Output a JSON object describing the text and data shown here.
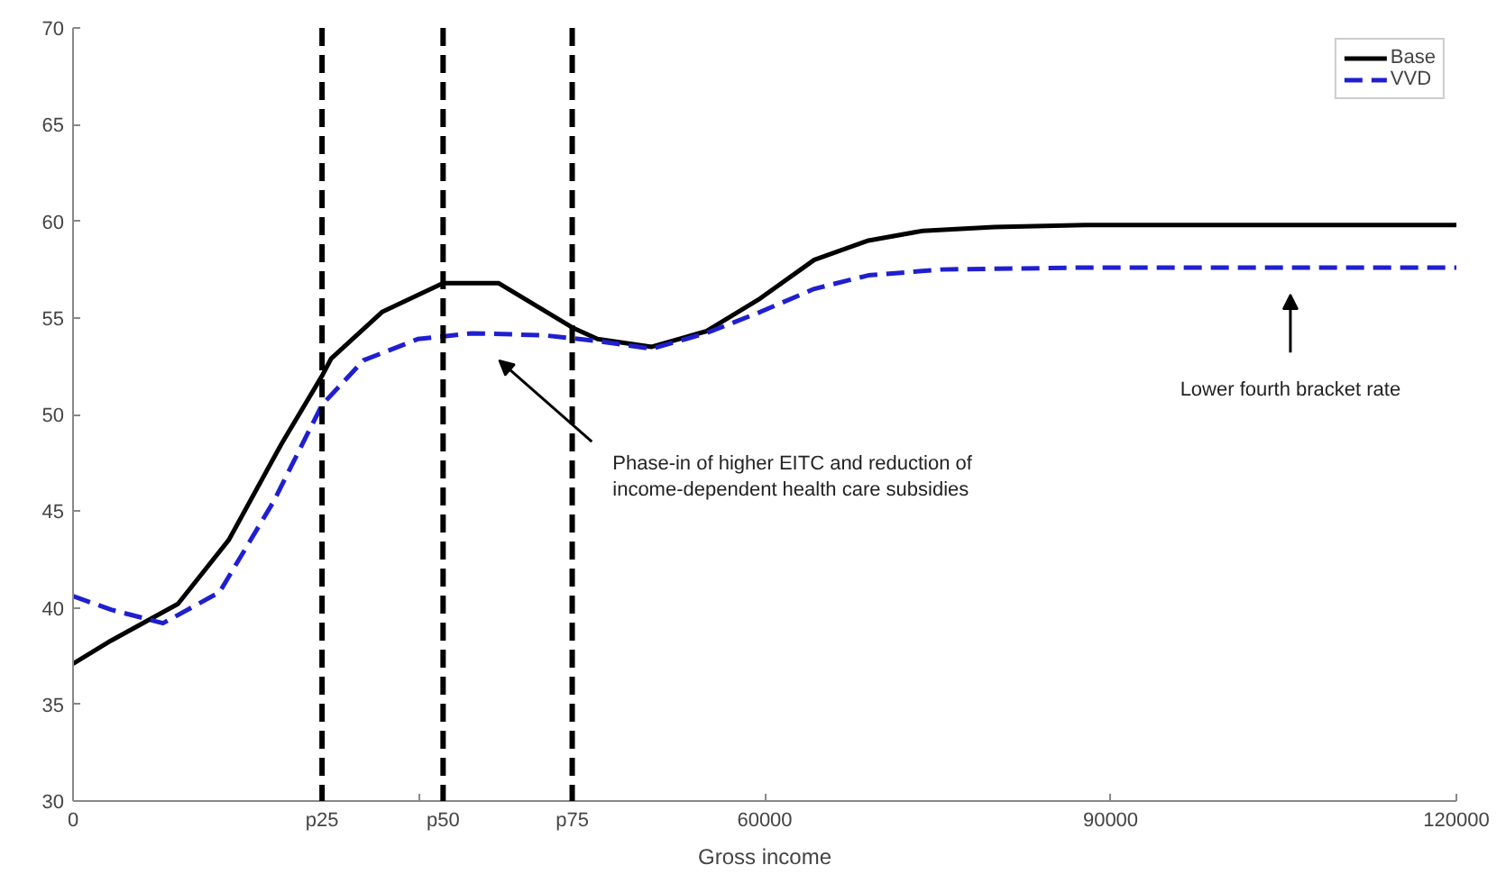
{
  "chart_data": {
    "type": "line",
    "xlabel": "Gross income",
    "xlim": [
      0,
      120000
    ],
    "ylim": [
      30,
      70
    ],
    "xticks": [
      0,
      {
        "value": 21600,
        "label": "p25"
      },
      {
        "value": 30000,
        "label": null
      },
      {
        "value": 32100,
        "label": "p50"
      },
      {
        "value": 43300,
        "label": "p75"
      },
      60000,
      90000,
      120000
    ],
    "yticks": [
      30,
      35,
      40,
      45,
      50,
      55,
      60,
      65,
      70
    ],
    "grid": false,
    "legend": "top right",
    "series": [
      {
        "name": "Base",
        "color": "#000000",
        "line_style": "solid",
        "x": [
          0,
          3300,
          9100,
          13500,
          18100,
          21600,
          22400,
          26800,
          32100,
          36900,
          43300,
          45500,
          50200,
          54900,
          59600,
          64300,
          69000,
          73700,
          79900,
          87800,
          120000
        ],
        "values": [
          37.1,
          38.3,
          40.2,
          43.5,
          48.5,
          52.0,
          52.9,
          55.3,
          56.8,
          56.8,
          54.5,
          53.9,
          53.5,
          54.3,
          56.0,
          58.0,
          59.0,
          59.5,
          59.7,
          59.8,
          59.8
        ]
      },
      {
        "name": "VVD",
        "color": "#1f1fd0",
        "line_style": "dashed",
        "x": [
          0,
          3300,
          7800,
          12700,
          17400,
          21600,
          25200,
          29900,
          34600,
          40800,
          45500,
          50200,
          54900,
          59600,
          64300,
          69000,
          75300,
          87800,
          120000
        ],
        "values": [
          40.6,
          39.9,
          39.2,
          40.8,
          45.5,
          50.5,
          52.8,
          53.9,
          54.2,
          54.1,
          53.8,
          53.4,
          54.2,
          55.3,
          56.5,
          57.2,
          57.5,
          57.6,
          57.6
        ]
      }
    ],
    "ref_lines": [
      {
        "axis": "x",
        "value": 21600,
        "color": "#000000",
        "line_style": "dashed"
      },
      {
        "axis": "x",
        "value": 32100,
        "color": "#000000",
        "line_style": "dashed"
      },
      {
        "axis": "x",
        "value": 43300,
        "color": "#000000",
        "line_style": "dashed"
      }
    ],
    "annotations": [
      "Phase-in of higher EITC and reduction of\nincome-dependent health care subsidies",
      "Lower fourth bracket rate"
    ]
  }
}
